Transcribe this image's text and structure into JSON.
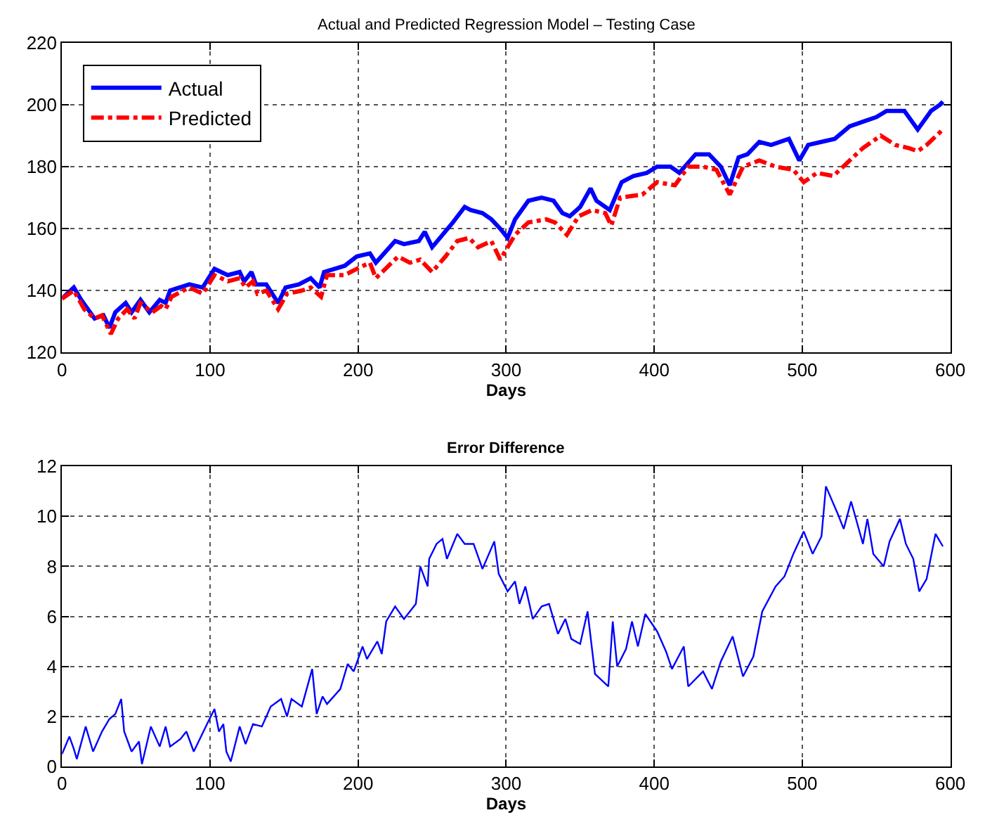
{
  "chart_data": [
    {
      "type": "line",
      "title": "Actual and Predicted Regression Model – Testing Case",
      "xlabel": "Days",
      "xlim": [
        0,
        600
      ],
      "xticks": [
        0,
        100,
        200,
        300,
        400,
        500,
        600
      ],
      "ylim": [
        120,
        220
      ],
      "yticks": [
        120,
        140,
        160,
        180,
        200,
        220
      ],
      "grid": true,
      "legend": "top left",
      "marker": "none",
      "series": [
        {
          "name": "Actual",
          "color": "#0000ff",
          "line_style": "solid",
          "x": [
            0,
            8,
            13,
            22,
            28,
            32,
            36,
            43,
            47,
            53,
            59,
            66,
            70,
            73,
            86,
            95,
            103,
            112,
            120,
            123,
            128,
            131,
            138,
            146,
            151,
            160,
            168,
            174,
            177,
            191,
            199,
            208,
            212,
            225,
            231,
            241,
            245,
            250,
            264,
            272,
            276,
            284,
            290,
            296,
            301,
            306,
            315,
            324,
            332,
            338,
            343,
            350,
            357,
            361,
            370,
            378,
            386,
            395,
            402,
            411,
            417,
            428,
            437,
            445,
            451,
            457,
            463,
            471,
            479,
            491,
            498,
            504,
            513,
            522,
            532,
            544,
            550,
            557,
            569,
            578,
            587,
            593,
            595
          ],
          "values": [
            137.4,
            141,
            137,
            131,
            132,
            128,
            133,
            136,
            133,
            137,
            133,
            137,
            136,
            140,
            142,
            141,
            147,
            145,
            146,
            143,
            146,
            142,
            142,
            136,
            141,
            142,
            144,
            141,
            146,
            148,
            151,
            152,
            149,
            156,
            155,
            156,
            159,
            154,
            162,
            167,
            166,
            165,
            163,
            160,
            157,
            163,
            169,
            170,
            169,
            165,
            164,
            167,
            173,
            169,
            166,
            175,
            177,
            178,
            180,
            180,
            178,
            184,
            184,
            180,
            174,
            183,
            184,
            188,
            187,
            189,
            182,
            187,
            188,
            189,
            193,
            195,
            196,
            198,
            198,
            192,
            198,
            200,
            201
          ]
        },
        {
          "name": "Predicted",
          "color": "#ff0000",
          "line_style": "dashed",
          "x": [
            0,
            8,
            15,
            22,
            27,
            33,
            38,
            44,
            49,
            53,
            61,
            67,
            70,
            74,
            86,
            95,
            103,
            112,
            120,
            124,
            129,
            132,
            138,
            146,
            152,
            162,
            168,
            175,
            179,
            191,
            199,
            208,
            212,
            227,
            235,
            242,
            250,
            259,
            267,
            275,
            281,
            290,
            296,
            306,
            315,
            327,
            333,
            341,
            349,
            358,
            367,
            371,
            377,
            392,
            402,
            414,
            423,
            433,
            442,
            451,
            460,
            471,
            482,
            494,
            501,
            510,
            521,
            532,
            541,
            553,
            563,
            572,
            578,
            584,
            595
          ],
          "values": [
            137.4,
            140,
            134,
            131,
            132,
            126,
            131,
            134,
            131,
            136,
            133,
            135,
            134,
            138,
            141,
            139,
            145,
            143,
            144,
            141,
            143,
            139,
            140,
            134,
            139,
            140,
            141,
            138,
            145,
            145,
            147,
            149,
            144,
            151,
            149,
            150,
            146,
            151,
            156,
            157,
            154,
            156,
            150,
            158,
            162,
            163,
            162,
            158,
            164,
            166,
            165,
            161,
            170,
            171,
            175,
            174,
            180,
            180,
            179,
            171,
            180,
            182,
            180,
            179,
            175,
            178,
            177,
            182,
            186,
            190,
            187,
            186,
            185,
            187,
            192
          ]
        }
      ]
    },
    {
      "type": "line",
      "title": "Error Difference",
      "xlabel": "Days",
      "xlim": [
        0,
        600
      ],
      "xticks": [
        0,
        100,
        200,
        300,
        400,
        500,
        600
      ],
      "ylim": [
        0,
        12
      ],
      "yticks": [
        0,
        2,
        4,
        6,
        8,
        10,
        12
      ],
      "grid": true,
      "marker": "none",
      "series": [
        {
          "color": "#0000ff",
          "line_style": "solid",
          "x": [
            0,
            5,
            8,
            10,
            16,
            21,
            27,
            32,
            36,
            40,
            42,
            47,
            52,
            54,
            60,
            66,
            70,
            73,
            80,
            84,
            89,
            98,
            103,
            106,
            109,
            111,
            114,
            120,
            124,
            129,
            135,
            141,
            148,
            152,
            155,
            162,
            169,
            172,
            176,
            179,
            188,
            193,
            197,
            203,
            206,
            213,
            216,
            219,
            225,
            231,
            239,
            242,
            247,
            248,
            253,
            257,
            260,
            267,
            272,
            278,
            284,
            292,
            295,
            301,
            306,
            309,
            313,
            318,
            324,
            329,
            335,
            340,
            344,
            350,
            355,
            360,
            369,
            372,
            375,
            381,
            385,
            389,
            394,
            402,
            408,
            412,
            420,
            423,
            433,
            439,
            445,
            453,
            460,
            467,
            473,
            482,
            488,
            494,
            501,
            507,
            513,
            516,
            524,
            528,
            533,
            541,
            544,
            548,
            555,
            559,
            566,
            570,
            575,
            579,
            584,
            590,
            595
          ],
          "values": [
            0.5,
            1.2,
            0.7,
            0.3,
            1.6,
            0.6,
            1.4,
            1.9,
            2.1,
            2.7,
            1.4,
            0.6,
            1.0,
            0.1,
            1.6,
            0.8,
            1.6,
            0.8,
            1.1,
            1.4,
            0.6,
            1.7,
            2.3,
            1.4,
            1.7,
            0.6,
            0.2,
            1.6,
            0.9,
            1.7,
            1.6,
            2.4,
            2.7,
            2.0,
            2.7,
            2.4,
            3.9,
            2.1,
            2.8,
            2.5,
            3.1,
            4.1,
            3.8,
            4.8,
            4.3,
            5.0,
            4.5,
            5.8,
            6.4,
            5.9,
            6.5,
            8.0,
            7.2,
            8.3,
            8.9,
            9.1,
            8.3,
            9.3,
            8.9,
            8.9,
            7.9,
            9.0,
            7.7,
            7.0,
            7.4,
            6.5,
            7.2,
            5.9,
            6.4,
            6.5,
            5.3,
            5.9,
            5.1,
            4.9,
            6.2,
            3.7,
            3.2,
            5.8,
            4.0,
            4.7,
            5.8,
            4.8,
            6.1,
            5.4,
            4.6,
            3.9,
            4.8,
            3.2,
            3.8,
            3.1,
            4.2,
            5.2,
            3.6,
            4.4,
            6.2,
            7.2,
            7.6,
            8.5,
            9.4,
            8.5,
            9.2,
            11.2,
            10.1,
            9.5,
            10.6,
            8.9,
            9.9,
            8.5,
            8.0,
            9.0,
            9.9,
            8.9,
            8.3,
            7.0,
            7.5,
            9.3,
            8.8
          ]
        }
      ]
    }
  ]
}
